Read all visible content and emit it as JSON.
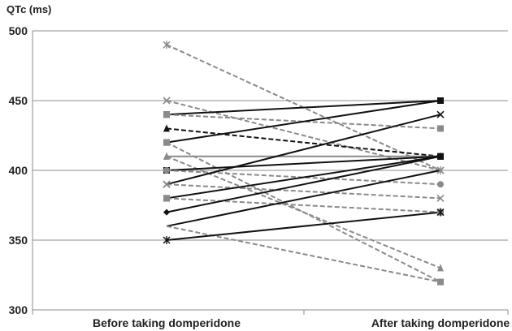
{
  "chart_data": {
    "type": "line",
    "ylabel": "QTc (ms)",
    "xlabel": "",
    "categories": [
      "Before taking domperidone",
      "After taking domperidone"
    ],
    "ylim": [
      300,
      500
    ],
    "yticks": [
      300,
      350,
      400,
      450,
      500
    ],
    "grid": true,
    "legend": "none",
    "series": [
      {
        "values": [
          490,
          400
        ],
        "style": "dashed",
        "color": "#8a8a8a",
        "marker": "star"
      },
      {
        "values": [
          450,
          400
        ],
        "style": "dashed",
        "color": "#8a8a8a",
        "marker": "x"
      },
      {
        "values": [
          440,
          450
        ],
        "style": "solid",
        "color": "#111111",
        "marker": "square"
      },
      {
        "values": [
          440,
          430
        ],
        "style": "dashed",
        "color": "#8a8a8a",
        "marker": "square"
      },
      {
        "values": [
          430,
          410
        ],
        "style": "dashed",
        "color": "#111111",
        "marker": "triangle"
      },
      {
        "values": [
          420,
          450
        ],
        "style": "solid",
        "color": "#111111",
        "marker": "square"
      },
      {
        "values": [
          420,
          320
        ],
        "style": "dashed",
        "color": "#8a8a8a",
        "marker": "square"
      },
      {
        "values": [
          410,
          410
        ],
        "style": "solid",
        "color": "#8a8a8a",
        "marker": "triangle"
      },
      {
        "values": [
          410,
          330
        ],
        "style": "dashed",
        "color": "#8a8a8a",
        "marker": "triangle"
      },
      {
        "values": [
          400,
          410
        ],
        "style": "solid",
        "color": "#111111",
        "marker": "square"
      },
      {
        "values": [
          400,
          390
        ],
        "style": "dashed",
        "color": "#8a8a8a",
        "marker": "circle"
      },
      {
        "values": [
          390,
          440
        ],
        "style": "solid",
        "color": "#111111",
        "marker": "x"
      },
      {
        "values": [
          390,
          380
        ],
        "style": "dashed",
        "color": "#8a8a8a",
        "marker": "x"
      },
      {
        "values": [
          380,
          410
        ],
        "style": "solid",
        "color": "#111111",
        "marker": "square"
      },
      {
        "values": [
          380,
          370
        ],
        "style": "dashed",
        "color": "#8a8a8a",
        "marker": "square"
      },
      {
        "values": [
          370,
          410
        ],
        "style": "solid",
        "color": "#111111",
        "marker": "diamond"
      },
      {
        "values": [
          360,
          400
        ],
        "style": "solid",
        "color": "#111111",
        "marker": "none"
      },
      {
        "values": [
          360,
          320
        ],
        "style": "dashed",
        "color": "#8a8a8a",
        "marker": "none"
      },
      {
        "values": [
          350,
          370
        ],
        "style": "solid",
        "color": "#111111",
        "marker": "star"
      }
    ]
  }
}
